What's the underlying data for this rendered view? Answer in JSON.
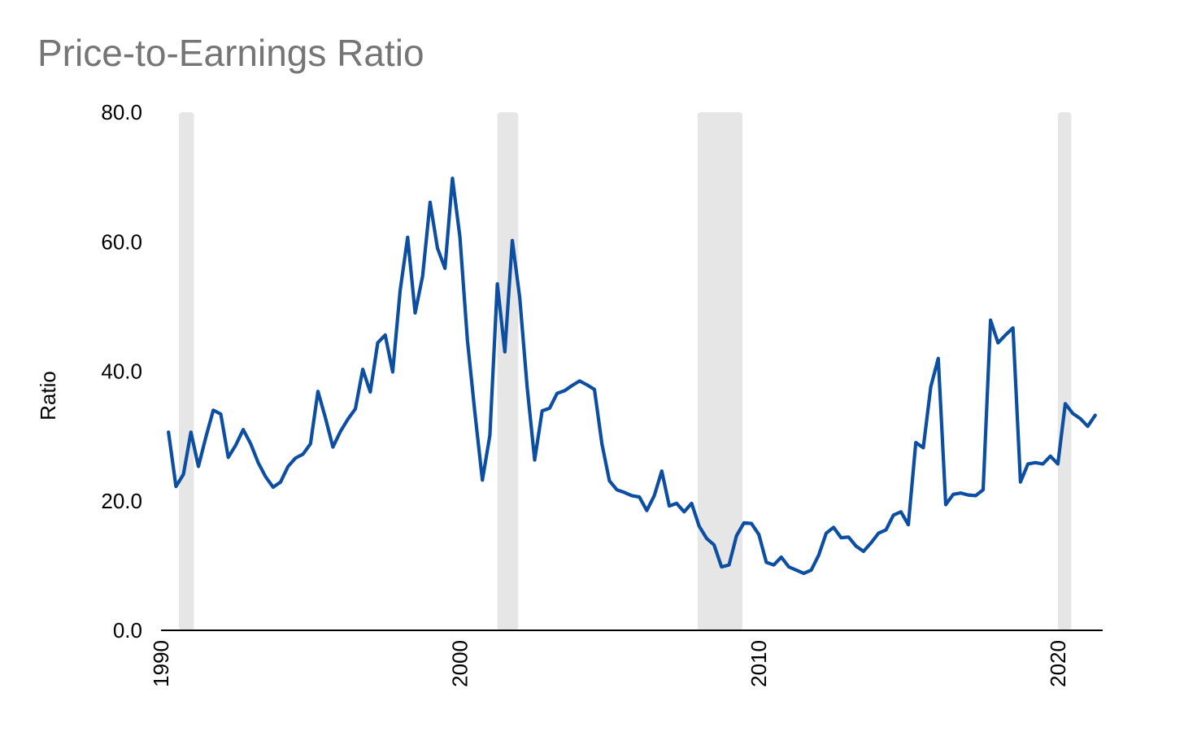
{
  "chart_data": {
    "type": "line",
    "title": "Price-to-Earnings Ratio",
    "xlabel": "",
    "ylabel": "Ratio",
    "xlim": [
      1990,
      2021.5
    ],
    "ylim": [
      0,
      80
    ],
    "y_ticks": [
      "0.0",
      "20.0",
      "40.0",
      "60.0",
      "80.0"
    ],
    "x_ticks": [
      "1990",
      "2000",
      "2010",
      "2020"
    ],
    "grid": false,
    "legend": "none",
    "line_color": "#0b4ea2",
    "shade_color": "#e6e6e6",
    "shaded_periods": [
      [
        1990.6,
        1991.1
      ],
      [
        2001.25,
        2001.95
      ],
      [
        2007.95,
        2009.45
      ],
      [
        2020.0,
        2020.45
      ]
    ],
    "series": [
      {
        "x": [
          1990.25,
          1990.5,
          1990.75,
          1991.0,
          1991.25,
          1991.5,
          1991.75,
          1992.0,
          1992.25,
          1992.5,
          1992.75,
          1993.0,
          1993.25,
          1993.5,
          1993.75,
          1994.0,
          1994.25,
          1994.5,
          1994.75,
          1995.0,
          1995.25,
          1995.5,
          1995.75,
          1996.0,
          1996.25,
          1996.5,
          1996.75,
          1997.0,
          1997.25,
          1997.5,
          1997.75,
          1998.0,
          1998.25,
          1998.5,
          1998.75,
          1999.0,
          1999.25,
          1999.5,
          1999.75,
          2000.0,
          2000.25,
          2000.5,
          2000.75,
          2001.0,
          2001.25,
          2001.5,
          2001.75,
          2002.0,
          2002.25,
          2002.5,
          2002.75,
          2003.0,
          2003.25,
          2003.5,
          2003.75,
          2004.0,
          2004.25,
          2004.5,
          2004.75,
          2005.0,
          2005.25,
          2005.5,
          2005.75,
          2006.0,
          2006.25,
          2006.5,
          2006.75,
          2007.0,
          2007.25,
          2007.5,
          2007.75,
          2008.0,
          2008.25,
          2008.5,
          2008.75,
          2009.0,
          2009.25,
          2009.5,
          2009.75,
          2010.0,
          2010.25,
          2010.5,
          2010.75,
          2011.0,
          2011.25,
          2011.5,
          2011.75,
          2012.0,
          2012.25,
          2012.5,
          2012.75,
          2013.0,
          2013.25,
          2013.5,
          2013.75,
          2014.0,
          2014.25,
          2014.5,
          2014.75,
          2015.0,
          2015.25,
          2015.5,
          2015.75,
          2016.0,
          2016.25,
          2016.5,
          2016.75,
          2017.0,
          2017.25,
          2017.5,
          2017.75,
          2018.0,
          2018.25,
          2018.5,
          2018.75,
          2019.0,
          2019.25,
          2019.5,
          2019.75,
          2020.0,
          2020.25,
          2020.5,
          2020.75,
          2021.0,
          2021.25
        ],
        "values": [
          30.6,
          22.2,
          24.1,
          30.6,
          25.3,
          29.8,
          34.0,
          33.4,
          26.7,
          28.6,
          31.0,
          28.8,
          25.9,
          23.7,
          22.1,
          22.9,
          25.3,
          26.6,
          27.2,
          28.8,
          36.9,
          32.8,
          28.3,
          30.7,
          32.6,
          34.2,
          40.3,
          36.8,
          44.4,
          45.6,
          39.9,
          52.5,
          60.7,
          49.0,
          54.7,
          66.1,
          59.0,
          55.9,
          69.8,
          60.7,
          44.8,
          33.6,
          23.2,
          30.1,
          53.5,
          43.0,
          60.2,
          51.4,
          37.5,
          26.3,
          33.9,
          34.3,
          36.6,
          37.0,
          37.8,
          38.5,
          37.9,
          37.2,
          28.8,
          23.1,
          21.7,
          21.3,
          20.8,
          20.6,
          18.5,
          20.8,
          24.6,
          19.2,
          19.6,
          18.3,
          19.6,
          16.1,
          14.2,
          13.2,
          9.8,
          10.1,
          14.6,
          16.6,
          16.5,
          14.8,
          10.5,
          10.1,
          11.3,
          9.8,
          9.3,
          8.8,
          9.3,
          11.6,
          15.0,
          15.9,
          14.3,
          14.4,
          13.0,
          12.2,
          13.5,
          15.0,
          15.5,
          17.8,
          18.3,
          16.3,
          29.0,
          28.2,
          37.6,
          42.0,
          19.4,
          21.0,
          21.2,
          20.9,
          20.8,
          21.7,
          47.9,
          44.4,
          45.6,
          46.7,
          22.9,
          25.7,
          25.9,
          25.7,
          26.9,
          25.7,
          35.0,
          33.5,
          32.7,
          31.5,
          33.2
        ]
      }
    ]
  }
}
